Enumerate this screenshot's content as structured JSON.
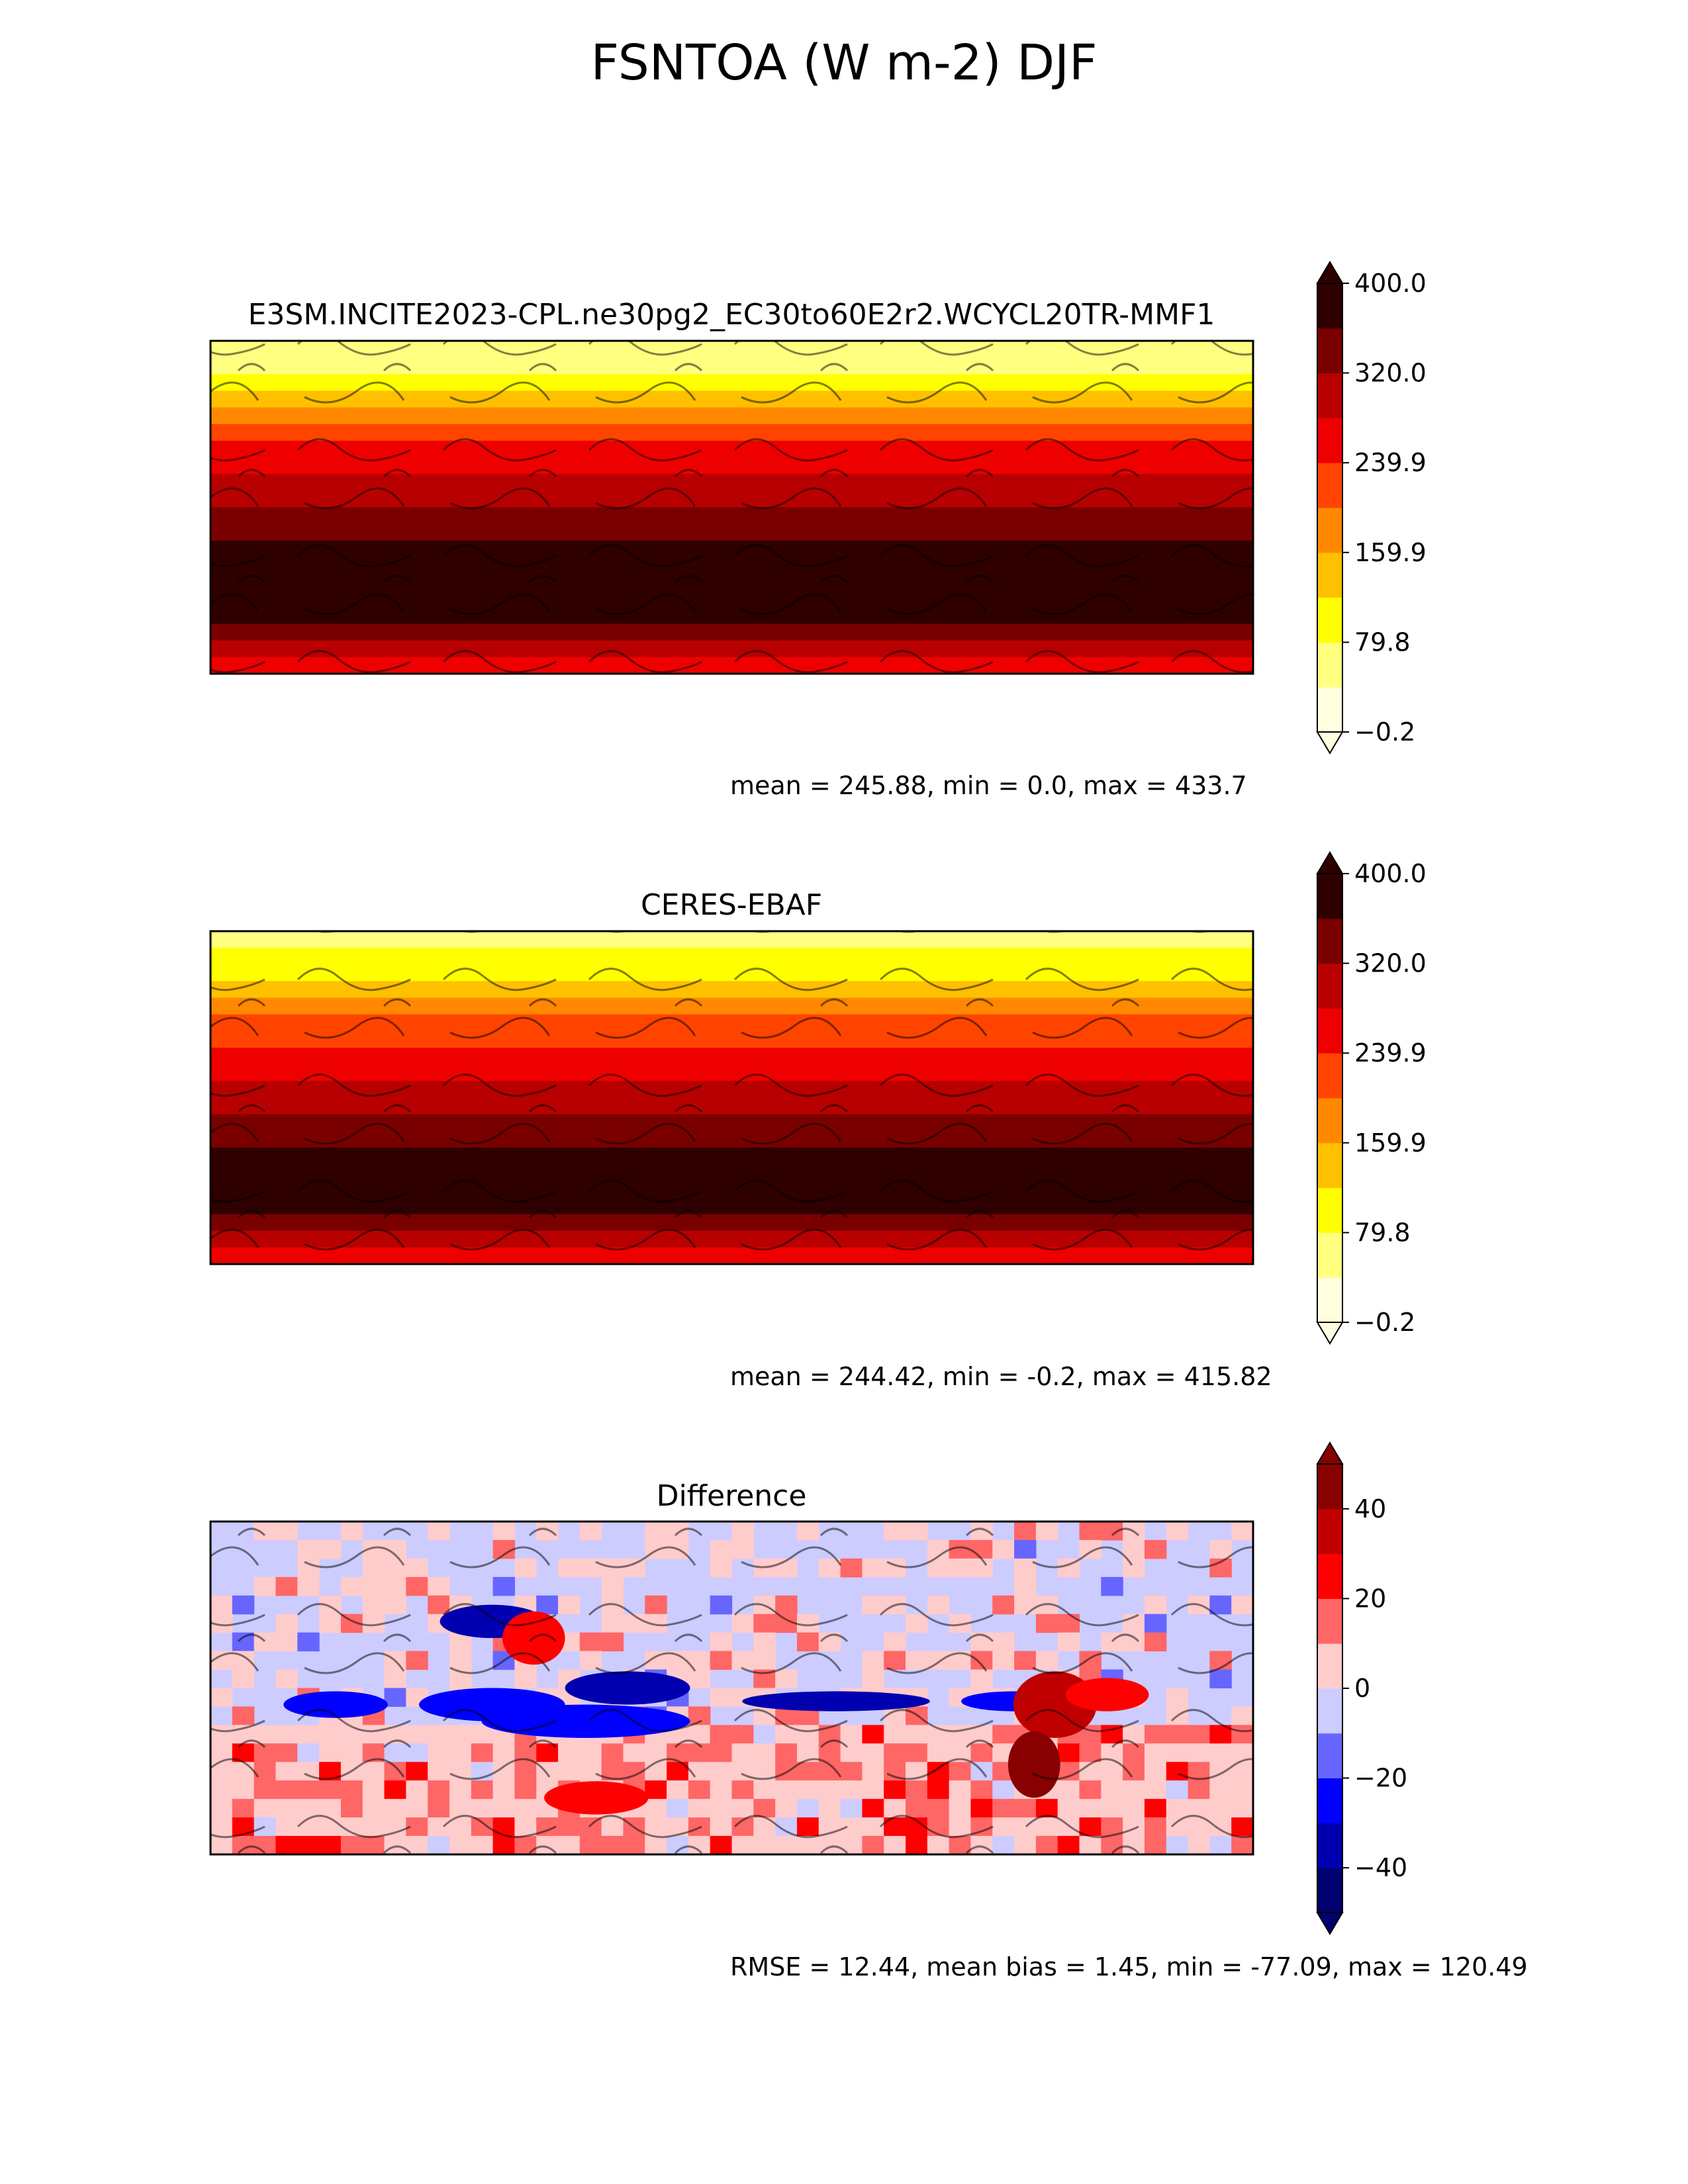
{
  "title": "FSNTOA (W m-2) DJF",
  "chart_data": [
    {
      "type": "heatmap",
      "title": "E3SM.INCITE2023-CPL.ne30pg2_EC30to60E2r2.WCYCL20TR-MMF1",
      "stats": "mean = 245.88, min = 0.0, max = 433.7",
      "colorbar": {
        "ticks": [
          "400.0",
          "320.0",
          "239.9",
          "159.9",
          "79.8",
          "−0.2"
        ],
        "tick_values": [
          400.0,
          320.0,
          239.9,
          159.9,
          79.8,
          -0.2
        ],
        "range": [
          -0.2,
          400.0
        ],
        "levels": 10,
        "extend": "both",
        "colors": [
          "#ffffe0",
          "#ffff80",
          "#ffff00",
          "#ffc000",
          "#ff8800",
          "#ff4400",
          "#ee0000",
          "#b80000",
          "#7a0000",
          "#2e0000"
        ]
      }
    },
    {
      "type": "heatmap",
      "title": "CERES-EBAF",
      "stats": "mean = 244.42, min = -0.2, max = 415.82",
      "colorbar": {
        "ticks": [
          "400.0",
          "320.0",
          "239.9",
          "159.9",
          "79.8",
          "−0.2"
        ],
        "tick_values": [
          400.0,
          320.0,
          239.9,
          159.9,
          79.8,
          -0.2
        ],
        "range": [
          -0.2,
          400.0
        ],
        "levels": 10,
        "extend": "both",
        "colors": [
          "#ffffe0",
          "#ffff80",
          "#ffff00",
          "#ffc000",
          "#ff8800",
          "#ff4400",
          "#ee0000",
          "#b80000",
          "#7a0000",
          "#2e0000"
        ]
      }
    },
    {
      "type": "heatmap",
      "title": "Difference",
      "stats": "RMSE = 12.44, mean bias = 1.45, min = -77.09, max = 120.49",
      "colorbar": {
        "ticks": [
          "40",
          "20",
          "0",
          "−20",
          "−40"
        ],
        "tick_values": [
          40,
          20,
          0,
          -20,
          -40
        ],
        "range": [
          -50,
          50
        ],
        "levels": 10,
        "extend": "both",
        "colors": [
          "#000070",
          "#0000b0",
          "#0000ff",
          "#6666ff",
          "#ccccff",
          "#ffcccc",
          "#ff6666",
          "#ff0000",
          "#c00000",
          "#880000"
        ]
      }
    }
  ]
}
